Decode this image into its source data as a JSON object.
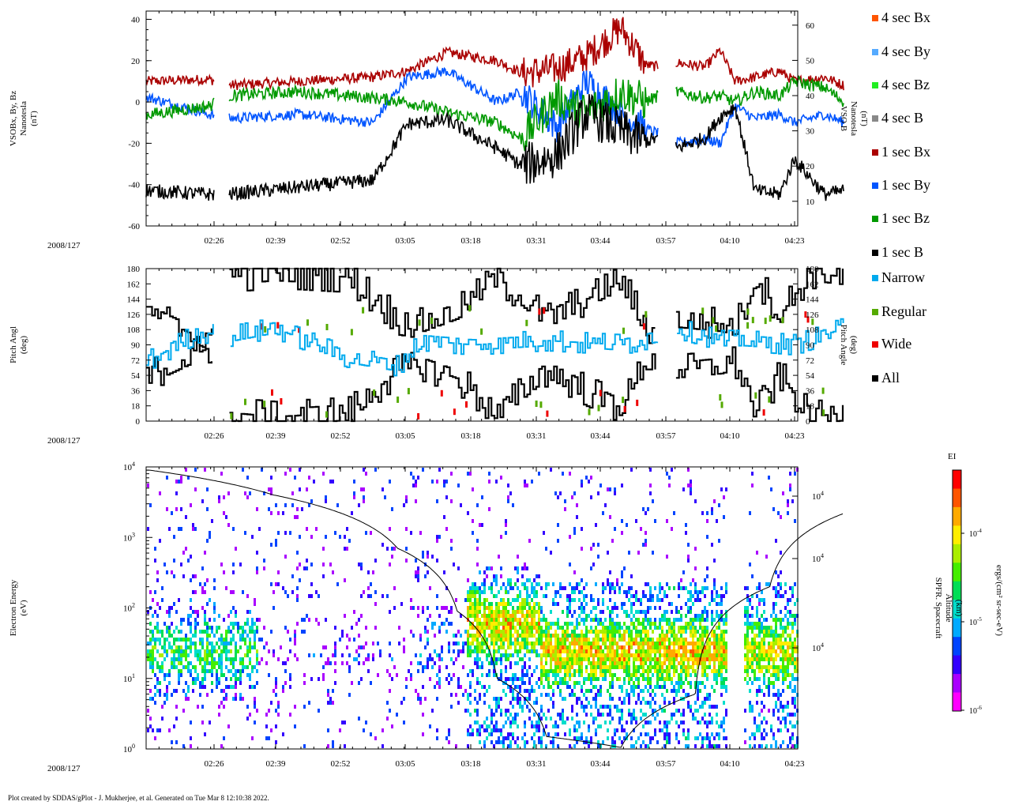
{
  "chart_data": [
    {
      "type": "line",
      "panel": "magnetic-field",
      "date_label": "2008/127",
      "ylabel_left": [
        "VSOBx, By, Bz",
        "Nanotesla",
        "(nT)"
      ],
      "ylabel_right": [
        "VSO B",
        "Nanotesla",
        "(nT)"
      ],
      "ylim_left": [
        -60,
        44
      ],
      "ylim_right": [
        3,
        64
      ],
      "yticks_left": [
        40,
        20,
        0,
        -20,
        -40,
        -60
      ],
      "yticks_right": [
        60,
        50,
        40,
        30,
        20,
        10
      ],
      "x_ticks": [
        "02:26",
        "02:39",
        "02:52",
        "03:05",
        "03:18",
        "03:31",
        "03:44",
        "03:57",
        "04:10",
        "04:23"
      ],
      "x_range_min": [
        0,
        140
      ],
      "gaps_min": [
        [
          13,
          16
        ],
        [
          102.5,
          106
        ]
      ],
      "series": [
        {
          "name": "1 sec Bx",
          "color": "#aa0000",
          "axis": "left",
          "x": [
            0,
            12,
            16,
            30,
            45,
            52,
            60,
            70,
            75,
            82,
            88,
            95,
            100,
            102.5,
            106,
            112,
            115,
            118,
            122,
            127,
            130,
            136,
            140
          ],
          "values": [
            10,
            11,
            8,
            10,
            12,
            15,
            24,
            20,
            14,
            16,
            22,
            36,
            18,
            17,
            19,
            17,
            25,
            10,
            12,
            15,
            10,
            12,
            8
          ]
        },
        {
          "name": "1 sec By",
          "color": "#0055ff",
          "axis": "left",
          "x": [
            0,
            12,
            16,
            30,
            45,
            52,
            60,
            70,
            75,
            82,
            88,
            95,
            100,
            102.5,
            106,
            112,
            115,
            118,
            122,
            127,
            130,
            136,
            140
          ],
          "values": [
            2,
            -6,
            -8,
            -6,
            -10,
            12,
            15,
            0,
            5,
            -12,
            10,
            -5,
            -13,
            -15,
            -20,
            -18,
            -20,
            -2,
            -8,
            -6,
            -10,
            -6,
            -10
          ]
        },
        {
          "name": "1 sec Bz",
          "color": "#009900",
          "axis": "left",
          "x": [
            0,
            12,
            16,
            30,
            45,
            52,
            60,
            70,
            75,
            82,
            88,
            95,
            100,
            102.5,
            106,
            112,
            115,
            118,
            122,
            127,
            130,
            136,
            140
          ],
          "values": [
            -6,
            -2,
            3,
            5,
            2,
            0,
            -5,
            -10,
            -18,
            2,
            -5,
            5,
            0,
            3,
            5,
            2,
            3,
            0,
            5,
            3,
            10,
            7,
            0
          ]
        },
        {
          "name": "1 sec B",
          "color": "#000000",
          "axis": "right",
          "x": [
            0,
            12,
            16,
            30,
            45,
            52,
            60,
            70,
            75,
            82,
            88,
            95,
            100,
            102.5,
            106,
            112,
            115,
            118,
            122,
            127,
            130,
            136,
            140
          ],
          "values": [
            13,
            12,
            12,
            14,
            16,
            32,
            33,
            25,
            20,
            23,
            35,
            30,
            27,
            28,
            25,
            28,
            34,
            37,
            13,
            12,
            22,
            12,
            13
          ]
        }
      ]
    },
    {
      "type": "line",
      "panel": "pitch-angle",
      "date_label": "2008/127",
      "ylabel_left": [
        "Pitch Angl",
        "(deg)"
      ],
      "ylabel_right": [
        "Pitch Angle",
        "(deg)"
      ],
      "ylim": [
        0,
        180
      ],
      "yticks": [
        180,
        162,
        144,
        126,
        108,
        90,
        72,
        54,
        36,
        18,
        0
      ],
      "x_ticks": [
        "02:26",
        "02:39",
        "02:52",
        "03:05",
        "03:18",
        "03:31",
        "03:44",
        "03:57",
        "04:10",
        "04:23"
      ],
      "series": [
        {
          "name": "All",
          "color": "#000000",
          "x": [
            0,
            13,
            16,
            25,
            40,
            50,
            55,
            62,
            70,
            80,
            95,
            100,
            102.5,
            106,
            115,
            118,
            122,
            127,
            133,
            140
          ],
          "values": [
            54,
            90,
            170,
            175,
            170,
            120,
            115,
            130,
            170,
            120,
            165,
            110,
            110,
            120,
            115,
            110,
            170,
            125,
            175,
            170
          ]
        },
        {
          "name": "Narrow",
          "color": "#00aaee",
          "x": [
            0,
            10,
            16,
            25,
            40,
            50,
            55,
            65,
            80,
            95,
            102.5,
            106,
            115,
            120,
            130,
            140
          ],
          "values": [
            72,
            105,
            100,
            110,
            75,
            65,
            95,
            90,
            95,
            90,
            100,
            110,
            95,
            95,
            90,
            110
          ]
        }
      ]
    },
    {
      "type": "heatmap",
      "panel": "electron-energy",
      "date_label": "2008/127",
      "ylabel_left": [
        "Electron Energy",
        "(eV)"
      ],
      "ylabel_right": [
        "SPFR. Spacecraft",
        "Altitude",
        "(km)"
      ],
      "yscale": "log",
      "ylim": [
        1,
        10000
      ],
      "yticks_labels": [
        "10^4",
        "10^3",
        "10^2",
        "10^1",
        "10^0"
      ],
      "right_ticks": [
        "10^4",
        "10^4",
        "10^4"
      ],
      "x_ticks": [
        "02:26",
        "02:39",
        "02:52",
        "03:05",
        "03:18",
        "03:31",
        "03:44",
        "03:57",
        "04:10",
        "04:23"
      ],
      "altitude_curve": {
        "x_min": [
          0,
          25,
          50,
          62,
          70,
          80,
          95,
          110,
          125,
          140
        ],
        "energy_ev": [
          9000,
          4000,
          700,
          90,
          10,
          1.5,
          1.05,
          6,
          200,
          2200
        ]
      },
      "colorbar": {
        "title": "EI",
        "label": "ergs/(cm² sr-sec-eV)",
        "ticks": [
          "10^-4",
          "10^-5",
          "10^-6"
        ]
      }
    }
  ],
  "legend": {
    "items": [
      {
        "label": "4 sec Bx",
        "color": "#ff5500"
      },
      {
        "label": "4 sec By",
        "color": "#55aaff"
      },
      {
        "label": "4 sec Bz",
        "color": "#22ee22"
      },
      {
        "label": "4 sec B",
        "color": "#888888"
      },
      {
        "label": "1 sec Bx",
        "color": "#aa0000"
      },
      {
        "label": "1 sec By",
        "color": "#0055ff"
      },
      {
        "label": "1 sec Bz",
        "color": "#009900"
      },
      {
        "label": "1 sec B",
        "color": "#000000"
      },
      {
        "label": "Narrow",
        "color": "#00aaee"
      },
      {
        "label": "Regular",
        "color": "#55aa00"
      },
      {
        "label": "Wide",
        "color": "#ee0000"
      },
      {
        "label": "All",
        "color": "#000000"
      }
    ]
  },
  "footer": "Plot created by SDDAS/gPlot - J. Mukherjee, et al.  Generated on Tue Mar 8 12:10:38 2022."
}
